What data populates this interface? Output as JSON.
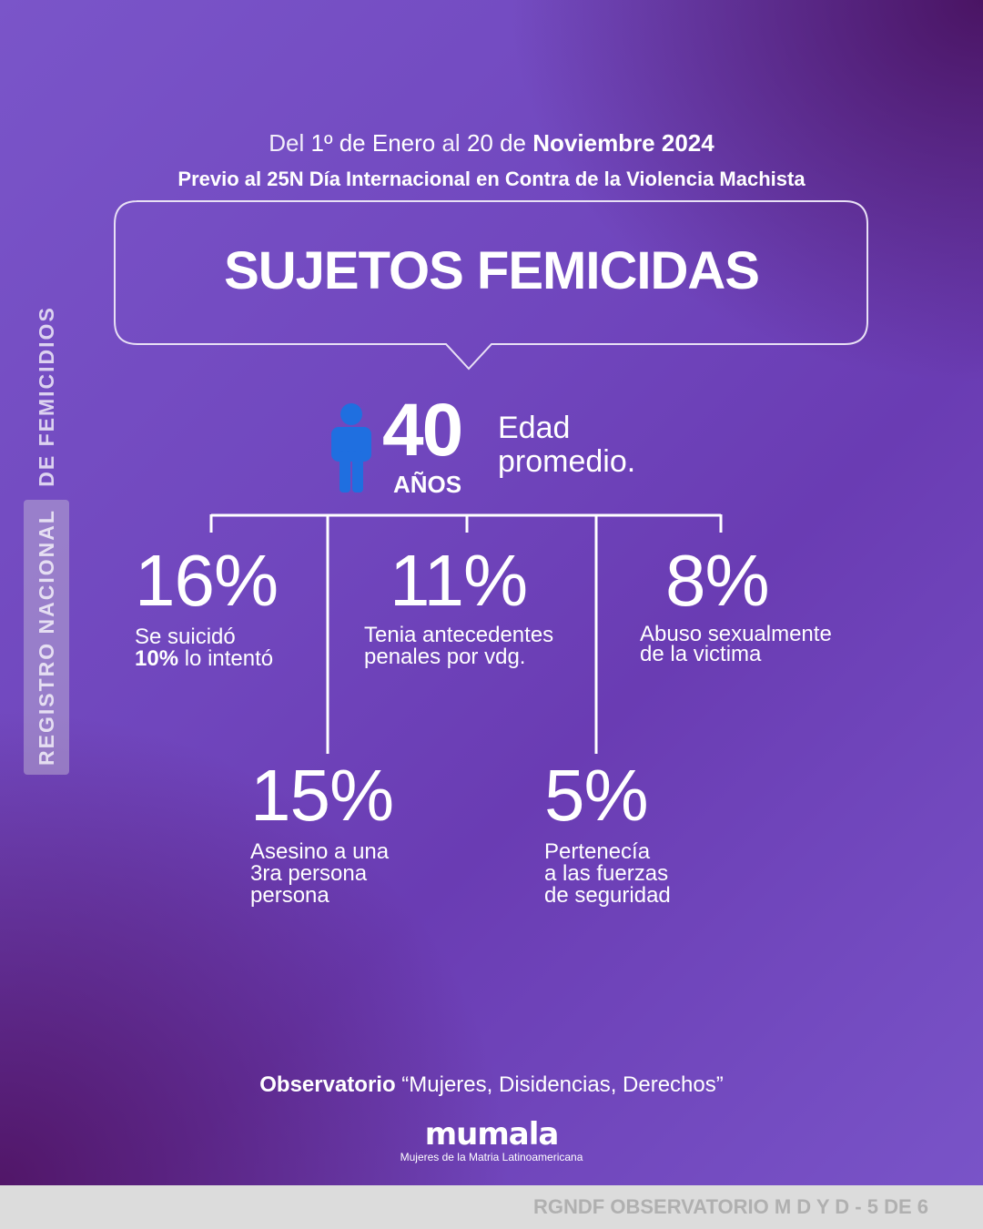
{
  "header": {
    "date": [
      "Del",
      "1º de Enero",
      "al",
      "20 de",
      "Noviembre 2024"
    ],
    "subtitle": "Previo al 25N Día Internacional en Contra de la Violencia Machista"
  },
  "title": "SUJETOS FEMICIDAS",
  "age": {
    "value": "40",
    "unit": "AÑOS",
    "label": [
      "Edad",
      "promedio."
    ]
  },
  "stats": [
    {
      "value": "16%",
      "lines": [
        "Se suicidó"
      ],
      "note": {
        "bold": "10%",
        "text": "lo intentó"
      }
    },
    {
      "value": "11%",
      "lines": [
        "Tenia antecedentes",
        "penales por vdg."
      ]
    },
    {
      "value": "8%",
      "lines": [
        "Abuso sexualmente",
        "de la victima"
      ]
    },
    {
      "value": "15%",
      "lines": [
        "Asesino a una",
        "3ra persona",
        "persona"
      ]
    },
    {
      "value": "5%",
      "lines": [
        "Pertenecía",
        "a las fuerzas",
        "de seguridad"
      ]
    }
  ],
  "side_label": [
    "REGISTRO NACIONAL",
    "DE FEMICIDIOS"
  ],
  "footer": {
    "observatory": {
      "bold": "Observatorio",
      "text": "“Mujeres, Disidencias, Derechos”"
    },
    "logo": "mumala",
    "logo_subtitle": "Mujeres de la Matria Latinoamericana",
    "bar": "RGNDF OBSERVATORIO M D Y D - 5 DE 6"
  }
}
